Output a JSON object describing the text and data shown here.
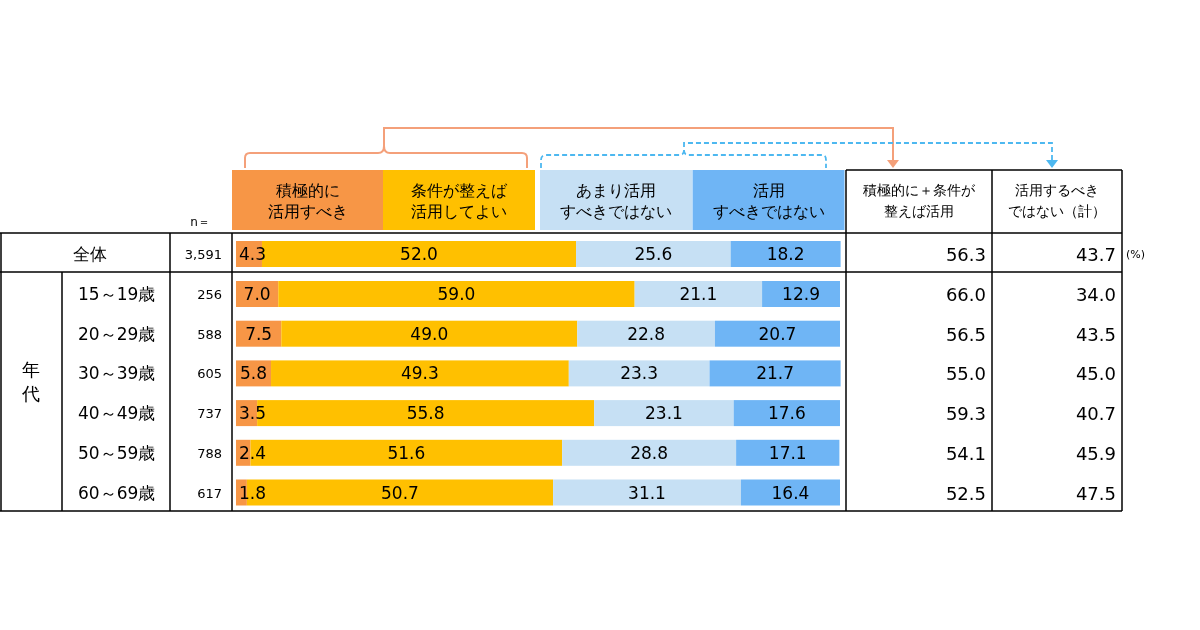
{
  "chart_data": {
    "type": "bar",
    "orientation": "horizontal",
    "stacked": true,
    "data_labels": true,
    "legend": "top",
    "tick_labels": "y",
    "xlim": [
      0,
      100
    ],
    "categories": [
      "全体",
      "15～19歳",
      "20～29歳",
      "30～39歳",
      "40～49歳",
      "50～59歳",
      "60～69歳"
    ],
    "series": [
      {
        "name": "積極的に活用すべき",
        "color": "#f79646",
        "values": [
          4.3,
          7.0,
          7.5,
          5.8,
          3.5,
          2.4,
          1.8
        ],
        "value_labels": [
          "4.3",
          "7.0",
          "7.5",
          "5.8",
          "3.5",
          "2.4",
          "1.8"
        ]
      },
      {
        "name": "条件が整えば活用してよい",
        "color": "#ffc000",
        "values": [
          52.0,
          59.0,
          49.0,
          49.3,
          55.8,
          51.6,
          50.7
        ],
        "value_labels": [
          "52.0",
          "59.0",
          "49.0",
          "49.3",
          "55.8",
          "51.6",
          "50.7"
        ]
      },
      {
        "name": "あまり活用すべきではない",
        "color": "#c6e0f4",
        "values": [
          25.6,
          21.1,
          22.8,
          23.3,
          23.1,
          28.8,
          31.1
        ],
        "value_labels": [
          "25.6",
          "21.1",
          "22.8",
          "23.3",
          "23.1",
          "28.8",
          "31.1"
        ]
      },
      {
        "name": "活用すべきではない",
        "color": "#6fb5f5",
        "values": [
          18.2,
          12.9,
          20.7,
          21.7,
          17.6,
          17.1,
          16.4
        ],
        "value_labels": [
          "18.2",
          "12.9",
          "20.7",
          "21.7",
          "17.6",
          "17.1",
          "16.4"
        ]
      }
    ],
    "annotations": [
      "n＝",
      "3,591",
      "256",
      "588",
      "605",
      "737",
      "788",
      "617",
      "積極的に＋条件が整えば活用",
      "活用するべきではない（計）",
      "56.3",
      "66.0",
      "56.5",
      "55.0",
      "59.3",
      "54.1",
      "52.5",
      "43.7",
      "34.0",
      "43.5",
      "45.0",
      "40.7",
      "45.9",
      "47.5",
      "(%)",
      "年代"
    ]
  }
}
